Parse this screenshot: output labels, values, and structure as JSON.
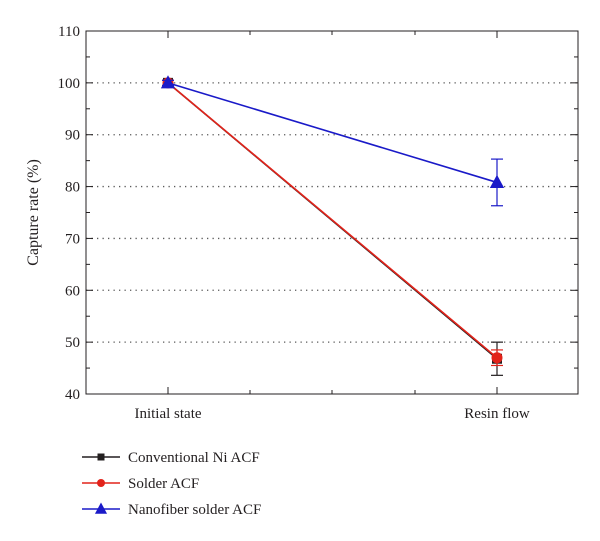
{
  "chart_data": {
    "type": "line",
    "categories": [
      "Initial state",
      "Resin flow"
    ],
    "ylabel": "Capture rate (%)",
    "xlabel": "",
    "ylim": [
      40,
      110
    ],
    "yticks": [
      40,
      50,
      60,
      70,
      80,
      90,
      100,
      110
    ],
    "grid": "horizontal dotted",
    "legend_position": "bottom-left, below plot",
    "series": [
      {
        "name": "Conventional Ni ACF",
        "color": "#231f20",
        "marker": "square",
        "values": [
          100,
          46.8
        ],
        "error": [
          0.5,
          3.2
        ]
      },
      {
        "name": "Solder ACF",
        "color": "#e2231a",
        "marker": "circle",
        "values": [
          100,
          47
        ],
        "error": [
          0.5,
          1.5
        ]
      },
      {
        "name": "Nanofiber solder ACF",
        "color": "#1a1ac8",
        "marker": "triangle",
        "values": [
          100,
          80.8
        ],
        "error": [
          0.5,
          4.5
        ]
      }
    ]
  }
}
